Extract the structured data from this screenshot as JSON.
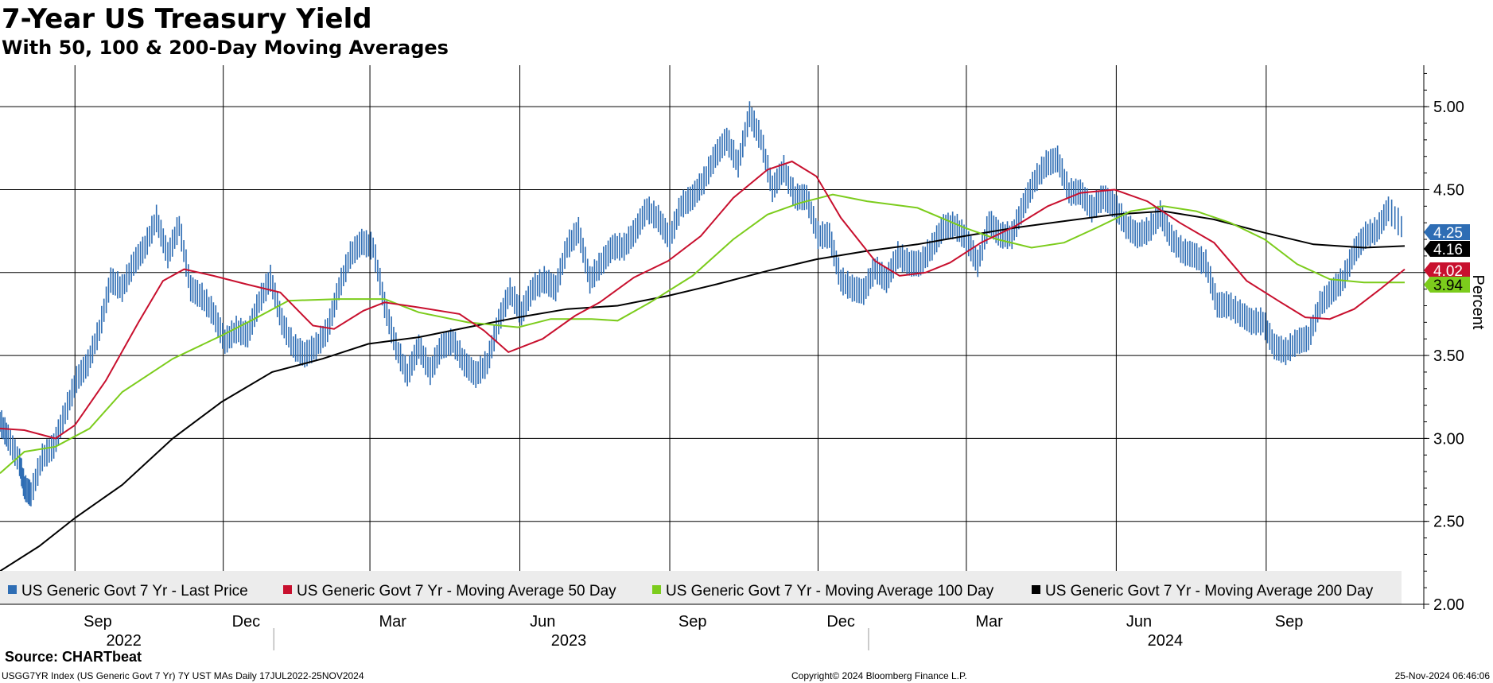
{
  "title": "7-Year US Treasury Yield",
  "subtitle": "With 50, 100 & 200-Day Moving Averages",
  "source": "Source: CHARTbeat",
  "footer": {
    "left": "USGG7YR Index (US Generic Govt 7 Yr) 7Y UST MAs  Daily 17JUL2022-25NOV2024",
    "center": "Copyright© 2024 Bloomberg Finance L.P.",
    "right": "25-Nov-2024 06:46:06"
  },
  "colors": {
    "price": "#2e6db4",
    "ma50": "#c8102e",
    "ma100": "#7ccc1c",
    "ma200": "#000000",
    "legend_bg": "#ececec",
    "grid": "#000000"
  },
  "chart_data": {
    "type": "line",
    "ylabel": "Percent",
    "ylim": [
      2.0,
      5.25
    ],
    "yticks": [
      "2.00",
      "2.50",
      "3.00",
      "3.50",
      "4.00",
      "4.50",
      "5.00"
    ],
    "x_range": [
      "2022-07-17",
      "2024-11-25"
    ],
    "month_labels": [
      {
        "label": "Sep",
        "date": "2022-09-15"
      },
      {
        "label": "Dec",
        "date": "2022-12-15"
      },
      {
        "label": "Mar",
        "date": "2023-03-15"
      },
      {
        "label": "Jun",
        "date": "2023-06-15"
      },
      {
        "label": "Sep",
        "date": "2023-09-15"
      },
      {
        "label": "Dec",
        "date": "2023-12-15"
      },
      {
        "label": "Mar",
        "date": "2024-03-15"
      },
      {
        "label": "Jun",
        "date": "2024-06-15"
      },
      {
        "label": "Sep",
        "date": "2024-09-15"
      }
    ],
    "month_gridlines": [
      "2022-09-01",
      "2022-12-01",
      "2023-03-01",
      "2023-06-01",
      "2023-09-01",
      "2023-12-01",
      "2024-03-01",
      "2024-06-01",
      "2024-09-01"
    ],
    "year_labels": [
      {
        "label": "2022",
        "date": "2022-10-01"
      },
      {
        "label": "2023",
        "date": "2023-07-01"
      },
      {
        "label": "2024",
        "date": "2024-07-01"
      }
    ],
    "year_separators": [
      "2023-01-01",
      "2024-01-01"
    ],
    "legend": [
      {
        "key": "price",
        "label": "US Generic Govt 7 Yr - Last Price"
      },
      {
        "key": "ma50",
        "label": "US Generic Govt 7 Yr - Moving Average 50 Day"
      },
      {
        "key": "ma100",
        "label": "US Generic Govt 7 Yr - Moving Average 100 Day"
      },
      {
        "key": "ma200",
        "label": "US Generic Govt 7 Yr - Moving Average 200 Day"
      }
    ],
    "last_values": [
      {
        "key": "price",
        "value": 4.25,
        "label": "4.25"
      },
      {
        "key": "ma200",
        "value": 4.16,
        "label": "4.16"
      },
      {
        "key": "ma50",
        "value": 4.02,
        "label": "4.02"
      },
      {
        "key": "ma100",
        "value": 3.94,
        "label": "3.94"
      }
    ],
    "series": [
      {
        "key": "price",
        "name": "US Generic Govt 7 Yr - Last Price",
        "style": "bars",
        "points": [
          [
            "2022-07-17",
            3.1
          ],
          [
            "2022-07-22",
            3.0
          ],
          [
            "2022-07-29",
            2.85
          ],
          [
            "2022-08-01",
            2.7
          ],
          [
            "2022-08-05",
            2.66
          ],
          [
            "2022-08-12",
            2.88
          ],
          [
            "2022-08-19",
            2.95
          ],
          [
            "2022-08-26",
            3.15
          ],
          [
            "2022-09-02",
            3.35
          ],
          [
            "2022-09-09",
            3.45
          ],
          [
            "2022-09-16",
            3.65
          ],
          [
            "2022-09-23",
            3.95
          ],
          [
            "2022-09-30",
            3.9
          ],
          [
            "2022-10-07",
            4.05
          ],
          [
            "2022-10-14",
            4.15
          ],
          [
            "2022-10-21",
            4.32
          ],
          [
            "2022-10-28",
            4.1
          ],
          [
            "2022-11-04",
            4.28
          ],
          [
            "2022-11-11",
            3.9
          ],
          [
            "2022-11-18",
            3.85
          ],
          [
            "2022-11-25",
            3.75
          ],
          [
            "2022-12-02",
            3.58
          ],
          [
            "2022-12-09",
            3.65
          ],
          [
            "2022-12-16",
            3.62
          ],
          [
            "2022-12-23",
            3.82
          ],
          [
            "2022-12-30",
            3.96
          ],
          [
            "2023-01-06",
            3.7
          ],
          [
            "2023-01-13",
            3.55
          ],
          [
            "2023-01-20",
            3.5
          ],
          [
            "2023-01-27",
            3.55
          ],
          [
            "2023-02-03",
            3.65
          ],
          [
            "2023-02-10",
            3.9
          ],
          [
            "2023-02-17",
            4.1
          ],
          [
            "2023-02-24",
            4.18
          ],
          [
            "2023-03-03",
            4.15
          ],
          [
            "2023-03-10",
            3.8
          ],
          [
            "2023-03-17",
            3.55
          ],
          [
            "2023-03-24",
            3.38
          ],
          [
            "2023-03-31",
            3.55
          ],
          [
            "2023-04-07",
            3.4
          ],
          [
            "2023-04-14",
            3.55
          ],
          [
            "2023-04-21",
            3.58
          ],
          [
            "2023-04-28",
            3.45
          ],
          [
            "2023-05-05",
            3.38
          ],
          [
            "2023-05-12",
            3.45
          ],
          [
            "2023-05-19",
            3.7
          ],
          [
            "2023-05-26",
            3.88
          ],
          [
            "2023-06-02",
            3.75
          ],
          [
            "2023-06-09",
            3.9
          ],
          [
            "2023-06-16",
            3.95
          ],
          [
            "2023-06-23",
            3.9
          ],
          [
            "2023-06-30",
            4.15
          ],
          [
            "2023-07-07",
            4.25
          ],
          [
            "2023-07-14",
            3.95
          ],
          [
            "2023-07-21",
            4.05
          ],
          [
            "2023-07-28",
            4.15
          ],
          [
            "2023-08-04",
            4.15
          ],
          [
            "2023-08-11",
            4.25
          ],
          [
            "2023-08-18",
            4.38
          ],
          [
            "2023-08-25",
            4.32
          ],
          [
            "2023-09-01",
            4.2
          ],
          [
            "2023-09-08",
            4.4
          ],
          [
            "2023-09-15",
            4.45
          ],
          [
            "2023-09-22",
            4.55
          ],
          [
            "2023-09-29",
            4.7
          ],
          [
            "2023-10-06",
            4.8
          ],
          [
            "2023-10-13",
            4.65
          ],
          [
            "2023-10-20",
            4.95
          ],
          [
            "2023-10-27",
            4.8
          ],
          [
            "2023-11-03",
            4.5
          ],
          [
            "2023-11-10",
            4.62
          ],
          [
            "2023-11-17",
            4.45
          ],
          [
            "2023-11-24",
            4.45
          ],
          [
            "2023-12-01",
            4.22
          ],
          [
            "2023-12-08",
            4.22
          ],
          [
            "2023-12-15",
            3.95
          ],
          [
            "2023-12-22",
            3.9
          ],
          [
            "2023-12-29",
            3.88
          ],
          [
            "2024-01-05",
            4.02
          ],
          [
            "2024-01-12",
            3.95
          ],
          [
            "2024-01-19",
            4.1
          ],
          [
            "2024-01-26",
            4.05
          ],
          [
            "2024-02-02",
            4.05
          ],
          [
            "2024-02-09",
            4.15
          ],
          [
            "2024-02-16",
            4.27
          ],
          [
            "2024-02-23",
            4.28
          ],
          [
            "2024-03-01",
            4.2
          ],
          [
            "2024-03-08",
            4.05
          ],
          [
            "2024-03-15",
            4.3
          ],
          [
            "2024-03-22",
            4.22
          ],
          [
            "2024-03-29",
            4.22
          ],
          [
            "2024-04-05",
            4.4
          ],
          [
            "2024-04-12",
            4.55
          ],
          [
            "2024-04-19",
            4.65
          ],
          [
            "2024-04-26",
            4.68
          ],
          [
            "2024-05-03",
            4.48
          ],
          [
            "2024-05-10",
            4.48
          ],
          [
            "2024-05-17",
            4.38
          ],
          [
            "2024-05-24",
            4.45
          ],
          [
            "2024-05-31",
            4.4
          ],
          [
            "2024-06-07",
            4.28
          ],
          [
            "2024-06-14",
            4.22
          ],
          [
            "2024-06-21",
            4.25
          ],
          [
            "2024-06-28",
            4.35
          ],
          [
            "2024-07-05",
            4.2
          ],
          [
            "2024-07-12",
            4.12
          ],
          [
            "2024-07-19",
            4.1
          ],
          [
            "2024-07-26",
            4.05
          ],
          [
            "2024-08-02",
            3.8
          ],
          [
            "2024-08-09",
            3.8
          ],
          [
            "2024-08-16",
            3.75
          ],
          [
            "2024-08-23",
            3.7
          ],
          [
            "2024-08-30",
            3.7
          ],
          [
            "2024-09-06",
            3.55
          ],
          [
            "2024-09-13",
            3.52
          ],
          [
            "2024-09-20",
            3.58
          ],
          [
            "2024-09-27",
            3.6
          ],
          [
            "2024-10-04",
            3.8
          ],
          [
            "2024-10-11",
            3.88
          ],
          [
            "2024-10-18",
            3.95
          ],
          [
            "2024-10-25",
            4.12
          ],
          [
            "2024-11-01",
            4.22
          ],
          [
            "2024-11-08",
            4.25
          ],
          [
            "2024-11-15",
            4.38
          ],
          [
            "2024-11-25",
            4.25
          ]
        ]
      },
      {
        "key": "ma50",
        "name": "US Generic Govt 7 Yr - Moving Average 50 Day",
        "style": "line",
        "points": [
          [
            "2022-07-17",
            3.06
          ],
          [
            "2022-08-01",
            3.05
          ],
          [
            "2022-08-20",
            3.0
          ],
          [
            "2022-09-01",
            3.08
          ],
          [
            "2022-09-20",
            3.35
          ],
          [
            "2022-10-10",
            3.7
          ],
          [
            "2022-10-25",
            3.95
          ],
          [
            "2022-11-07",
            4.02
          ],
          [
            "2022-11-25",
            3.98
          ],
          [
            "2022-12-15",
            3.93
          ],
          [
            "2023-01-05",
            3.88
          ],
          [
            "2023-01-25",
            3.68
          ],
          [
            "2023-02-07",
            3.66
          ],
          [
            "2023-02-25",
            3.77
          ],
          [
            "2023-03-10",
            3.82
          ],
          [
            "2023-03-31",
            3.79
          ],
          [
            "2023-04-25",
            3.75
          ],
          [
            "2023-05-10",
            3.65
          ],
          [
            "2023-05-25",
            3.52
          ],
          [
            "2023-06-15",
            3.6
          ],
          [
            "2023-07-05",
            3.74
          ],
          [
            "2023-07-20",
            3.82
          ],
          [
            "2023-08-10",
            3.97
          ],
          [
            "2023-08-31",
            4.07
          ],
          [
            "2023-09-20",
            4.22
          ],
          [
            "2023-10-10",
            4.45
          ],
          [
            "2023-10-31",
            4.62
          ],
          [
            "2023-11-15",
            4.67
          ],
          [
            "2023-11-30",
            4.58
          ],
          [
            "2023-12-15",
            4.33
          ],
          [
            "2024-01-05",
            4.07
          ],
          [
            "2024-01-20",
            3.98
          ],
          [
            "2024-02-05",
            4.0
          ],
          [
            "2024-02-20",
            4.06
          ],
          [
            "2024-03-10",
            4.18
          ],
          [
            "2024-03-31",
            4.28
          ],
          [
            "2024-04-20",
            4.4
          ],
          [
            "2024-05-10",
            4.48
          ],
          [
            "2024-05-31",
            4.5
          ],
          [
            "2024-06-20",
            4.43
          ],
          [
            "2024-07-10",
            4.3
          ],
          [
            "2024-07-31",
            4.18
          ],
          [
            "2024-08-20",
            3.95
          ],
          [
            "2024-09-10",
            3.82
          ],
          [
            "2024-09-25",
            3.73
          ],
          [
            "2024-10-10",
            3.72
          ],
          [
            "2024-10-25",
            3.78
          ],
          [
            "2024-11-10",
            3.9
          ],
          [
            "2024-11-25",
            4.02
          ]
        ]
      },
      {
        "key": "ma100",
        "name": "US Generic Govt 7 Yr - Moving Average 100 Day",
        "style": "line",
        "points": [
          [
            "2022-07-17",
            2.79
          ],
          [
            "2022-08-01",
            2.92
          ],
          [
            "2022-08-20",
            2.95
          ],
          [
            "2022-09-10",
            3.06
          ],
          [
            "2022-09-30",
            3.28
          ],
          [
            "2022-10-31",
            3.48
          ],
          [
            "2022-11-30",
            3.62
          ],
          [
            "2022-12-20",
            3.72
          ],
          [
            "2023-01-10",
            3.83
          ],
          [
            "2023-02-10",
            3.84
          ],
          [
            "2023-03-10",
            3.84
          ],
          [
            "2023-03-31",
            3.76
          ],
          [
            "2023-04-30",
            3.7
          ],
          [
            "2023-05-31",
            3.67
          ],
          [
            "2023-06-20",
            3.72
          ],
          [
            "2023-07-15",
            3.72
          ],
          [
            "2023-07-31",
            3.71
          ],
          [
            "2023-08-20",
            3.82
          ],
          [
            "2023-09-15",
            3.98
          ],
          [
            "2023-10-10",
            4.2
          ],
          [
            "2023-10-31",
            4.35
          ],
          [
            "2023-11-20",
            4.42
          ],
          [
            "2023-12-10",
            4.47
          ],
          [
            "2023-12-31",
            4.43
          ],
          [
            "2024-01-31",
            4.39
          ],
          [
            "2024-02-29",
            4.27
          ],
          [
            "2024-03-20",
            4.2
          ],
          [
            "2024-04-10",
            4.15
          ],
          [
            "2024-04-30",
            4.18
          ],
          [
            "2024-05-20",
            4.27
          ],
          [
            "2024-06-10",
            4.37
          ],
          [
            "2024-06-30",
            4.4
          ],
          [
            "2024-07-20",
            4.37
          ],
          [
            "2024-08-10",
            4.3
          ],
          [
            "2024-08-31",
            4.2
          ],
          [
            "2024-09-20",
            4.05
          ],
          [
            "2024-10-10",
            3.96
          ],
          [
            "2024-10-31",
            3.94
          ],
          [
            "2024-11-25",
            3.94
          ]
        ]
      },
      {
        "key": "ma200",
        "name": "US Generic Govt 7 Yr - Moving Average 200 Day",
        "style": "line",
        "points": [
          [
            "2022-07-17",
            2.2
          ],
          [
            "2022-08-10",
            2.35
          ],
          [
            "2022-09-01",
            2.52
          ],
          [
            "2022-09-30",
            2.72
          ],
          [
            "2022-10-31",
            3.0
          ],
          [
            "2022-11-30",
            3.22
          ],
          [
            "2022-12-31",
            3.4
          ],
          [
            "2023-01-31",
            3.48
          ],
          [
            "2023-02-28",
            3.57
          ],
          [
            "2023-03-31",
            3.61
          ],
          [
            "2023-04-30",
            3.67
          ],
          [
            "2023-05-31",
            3.73
          ],
          [
            "2023-06-30",
            3.78
          ],
          [
            "2023-07-31",
            3.8
          ],
          [
            "2023-08-31",
            3.86
          ],
          [
            "2023-09-30",
            3.93
          ],
          [
            "2023-10-31",
            4.01
          ],
          [
            "2023-11-30",
            4.08
          ],
          [
            "2023-12-31",
            4.13
          ],
          [
            "2024-01-31",
            4.17
          ],
          [
            "2024-02-29",
            4.22
          ],
          [
            "2024-03-31",
            4.27
          ],
          [
            "2024-04-30",
            4.31
          ],
          [
            "2024-05-31",
            4.35
          ],
          [
            "2024-06-30",
            4.37
          ],
          [
            "2024-07-31",
            4.32
          ],
          [
            "2024-08-31",
            4.24
          ],
          [
            "2024-09-30",
            4.17
          ],
          [
            "2024-10-31",
            4.15
          ],
          [
            "2024-11-25",
            4.16
          ]
        ]
      }
    ]
  }
}
